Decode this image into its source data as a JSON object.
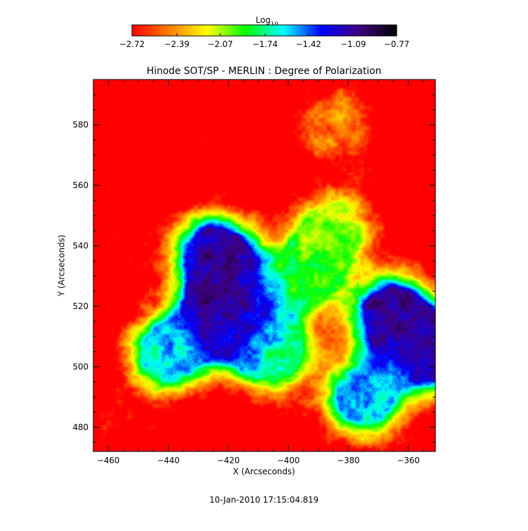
{
  "chart_data": {
    "type": "heatmap",
    "title": "Hinode SOT/SP - MERLIN : Degree of Polarization",
    "xlabel": "X (Arcseconds)",
    "ylabel": "Y (Arcseconds)",
    "xlim": [
      -465,
      -351
    ],
    "ylim": [
      472,
      595
    ],
    "x_ticks": [
      -460,
      -440,
      -420,
      -400,
      -380,
      -360
    ],
    "x_tick_labels": [
      "−460",
      "−440",
      "−420",
      "−400",
      "−380",
      "−360"
    ],
    "y_ticks": [
      480,
      500,
      520,
      540,
      560,
      580
    ],
    "y_tick_labels": [
      "480",
      "500",
      "520",
      "540",
      "560",
      "580"
    ],
    "colorbar": {
      "label_main": "Log",
      "label_sub": "10",
      "min": -2.72,
      "max": -0.77,
      "tick_values": [
        -2.72,
        -2.39,
        -2.07,
        -1.74,
        -1.42,
        -1.09,
        -0.77
      ],
      "tick_labels": [
        "−2.72",
        "−2.39",
        "−2.07",
        "−1.74",
        "−1.42",
        "−1.09",
        "−0.77"
      ],
      "colormap": [
        "#ff0000",
        "#ff8000",
        "#ffff00",
        "#00ff00",
        "#00ffff",
        "#0000ff",
        "#400080",
        "#000000"
      ]
    },
    "features": [
      {
        "x": -424,
        "y": 537,
        "value": -0.8
      },
      {
        "x": -420,
        "y": 520,
        "value": -0.8
      },
      {
        "x": -418,
        "y": 515,
        "value": -0.85
      },
      {
        "x": -365,
        "y": 517,
        "value": -0.8
      },
      {
        "x": -353,
        "y": 505,
        "value": -0.9
      },
      {
        "x": -395,
        "y": 530,
        "value": -1.6
      },
      {
        "x": -405,
        "y": 505,
        "value": -1.5
      },
      {
        "x": -385,
        "y": 545,
        "value": -1.8
      },
      {
        "x": -440,
        "y": 505,
        "value": -1.3
      },
      {
        "x": -375,
        "y": 490,
        "value": -1.3
      },
      {
        "x": -455,
        "y": 540,
        "value": -2.6
      },
      {
        "x": -425,
        "y": 580,
        "value": -2.6
      },
      {
        "x": -455,
        "y": 480,
        "value": -2.5
      },
      {
        "x": -385,
        "y": 580,
        "value": -2.2
      }
    ]
  },
  "footer": {
    "timestamp": "10-Jan-2010 17:15:04.819"
  }
}
